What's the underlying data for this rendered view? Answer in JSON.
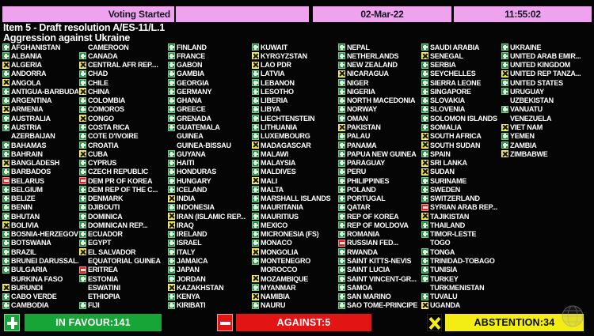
{
  "header": {
    "status": "Voting Started",
    "date": "02-Mar-22",
    "time": "11:55:02"
  },
  "title": {
    "line1": "Item 5 - Draft resolution A/ES-11/L.1",
    "line2": "Aggression against Ukraine"
  },
  "icon_legend": {
    "Y": "in-favour-plus-icon",
    "N": "against-minus-icon",
    "A": "abstention-x-icon",
    "O": "no-vote-blank"
  },
  "columns": [
    [
      "AFGHANISTAN|Y",
      "ALBANIA|Y",
      "ALGERIA|A",
      "ANDORRA|Y",
      "ANGOLA|A",
      "ANTIGUA-BARBUDA|Y",
      "ARGENTINA|Y",
      "ARMENIA|A",
      "AUSTRALIA|Y",
      "AUSTRIA|Y",
      "AZERBAIJAN|O",
      "BAHAMAS|Y",
      "BAHRAIN|Y",
      "BANGLADESH|A",
      "BARBADOS|Y",
      "BELARUS|N",
      "BELGIUM|Y",
      "BELIZE|Y",
      "BENIN|Y",
      "BHUTAN|Y",
      "BOLIVIA|A",
      "BOSNIA-HERZEGOVI...|Y",
      "BOTSWANA|Y",
      "BRAZIL|Y",
      "BRUNEI DARUSSAL...|Y",
      "BULGARIA|Y",
      "BURKINA FASO|O",
      "BURUNDI|A",
      "CABO VERDE|Y",
      "CAMBODIA|Y"
    ],
    [
      "CAMEROON|O",
      "CANADA|Y",
      "CENTRAL AFR REP....|A",
      "CHAD|Y",
      "CHILE|Y",
      "CHINA|A",
      "COLOMBIA|Y",
      "COMOROS|Y",
      "CONGO|A",
      "COSTA RICA|Y",
      "COTE D'IVOIRE|Y",
      "CROATIA|Y",
      "CUBA|A",
      "CYPRUS|Y",
      "CZECH REPUBLIC|Y",
      "DEM PR OF KOREA|N",
      "DEM REP OF THE C...|Y",
      "DENMARK|Y",
      "DJIBOUTI|Y",
      "DOMINICA|Y",
      "DOMINICAN REP...|Y",
      "ECUADOR|Y",
      "EGYPT|Y",
      "EL SALVADOR|A",
      "EQUATORIAL GUINEA|O",
      "ERITREA|N",
      "ESTONIA|Y",
      "ESWATINI|O",
      "ETHIOPIA|O",
      "FIJI|Y"
    ],
    [
      "FINLAND|Y",
      "FRANCE|Y",
      "GABON|Y",
      "GAMBIA|Y",
      "GEORGIA|Y",
      "GERMANY|Y",
      "GHANA|Y",
      "GREECE|Y",
      "GRENADA|Y",
      "GUATEMALA|Y",
      "GUINEA|O",
      "GUINEA-BISSAU|O",
      "GUYANA|Y",
      "HAITI|Y",
      "HONDURAS|Y",
      "HUNGARY|Y",
      "ICELAND|Y",
      "INDIA|A",
      "INDONESIA|Y",
      "IRAN (ISLAMIC REP...|A",
      "IRAQ|A",
      "IRELAND|Y",
      "ISRAEL|Y",
      "ITALY|Y",
      "JAMAICA|Y",
      "JAPAN|Y",
      "JORDAN|Y",
      "KAZAKHSTAN|A",
      "KENYA|Y",
      "KIRIBATI|Y"
    ],
    [
      "KUWAIT|Y",
      "KYRGYZSTAN|A",
      "LAO PDR|A",
      "LATVIA|Y",
      "LEBANON|Y",
      "LESOTHO|Y",
      "LIBERIA|Y",
      "LIBYA|Y",
      "LIECHTENSTEIN|Y",
      "LITHUANIA|Y",
      "LUXEMBOURG|Y",
      "MADAGASCAR|A",
      "MALAWI|Y",
      "MALAYSIA|Y",
      "MALDIVES|Y",
      "MALI|A",
      "MALTA|Y",
      "MARSHALL ISLANDS|Y",
      "MAURITANIA|Y",
      "MAURITIUS|Y",
      "MEXICO|Y",
      "MICRONESIA (FS)|Y",
      "MONACO|Y",
      "MONGOLIA|A",
      "MONTENEGRO|Y",
      "MOROCCO|O",
      "MOZAMBIQUE|A",
      "MYANMAR|Y",
      "NAMIBIA|A",
      "NAURU|Y"
    ],
    [
      "NEPAL|Y",
      "NETHERLANDS|Y",
      "NEW ZEALAND|Y",
      "NICARAGUA|A",
      "NIGER|Y",
      "NIGERIA|Y",
      "NORTH MACEDONIA|Y",
      "NORWAY|Y",
      "OMAN|Y",
      "PAKISTAN|A",
      "PALAU|Y",
      "PANAMA|Y",
      "PAPUA NEW GUINEA|Y",
      "PARAGUAY|Y",
      "PERU|Y",
      "PHILIPPINES|Y",
      "POLAND|Y",
      "PORTUGAL|Y",
      "QATAR|Y",
      "REP OF KOREA|Y",
      "REP OF MOLDOVA|Y",
      "ROMANIA|Y",
      "RUSSIAN FED...|N",
      "RWANDA|Y",
      "SAINT KITTS-NEVIS|Y",
      "SAINT LUCIA|Y",
      "SAINT VINCENT-GR...|Y",
      "SAMOA|Y",
      "SAN MARINO|Y",
      "SAO TOME-PRINCIPE|Y"
    ],
    [
      "SAUDI ARABIA|Y",
      "SENEGAL|A",
      "SERBIA|Y",
      "SEYCHELLES|Y",
      "SIERRA LEONE|Y",
      "SINGAPORE|Y",
      "SLOVAKIA|Y",
      "SLOVENIA|Y",
      "SOLOMON ISLANDS|Y",
      "SOMALIA|Y",
      "SOUTH AFRICA|A",
      "SOUTH SUDAN|A",
      "SPAIN|Y",
      "SRI LANKA|A",
      "SUDAN|A",
      "SURINAME|Y",
      "SWEDEN|Y",
      "SWITZERLAND|Y",
      "SYRIAN ARAB REP...|N",
      "TAJIKISTAN|A",
      "THAILAND|Y",
      "TIMOR-LESTE|Y",
      "TOGO|O",
      "TONGA|Y",
      "TRINIDAD-TOBAGO|Y",
      "TUNISIA|Y",
      "TURKEY|Y",
      "TURKMENISTAN|O",
      "TUVALU|Y",
      "UGANDA|A"
    ],
    [
      "UKRAINE|Y",
      "UNITED ARAB EMIR...|Y",
      "UNITED KINGDOM|Y",
      "UNITED REP TANZA...|A",
      "UNITED STATES|Y",
      "URUGUAY|Y",
      "UZBEKISTAN|O",
      "VANUATU|Y",
      "VENEZUELA|O",
      "VIET NAM|A",
      "YEMEN|Y",
      "ZAMBIA|Y",
      "ZIMBABWE|A"
    ]
  ],
  "summary": {
    "in_favour": "IN FAVOUR:141",
    "against": "AGAINST:5",
    "abstention": "ABSTENTION:34"
  },
  "colors": {
    "pink": "#efa3ef",
    "favour_green": "#2e8b4f",
    "favour_border": "#79c88c",
    "favour_glyph": "#dff3df",
    "abstain_yellow": "#ece43a",
    "against_red": "#d62822",
    "summary_green": "#17a538",
    "summary_red": "#e31414",
    "summary_yellow": "#f3ed15"
  }
}
